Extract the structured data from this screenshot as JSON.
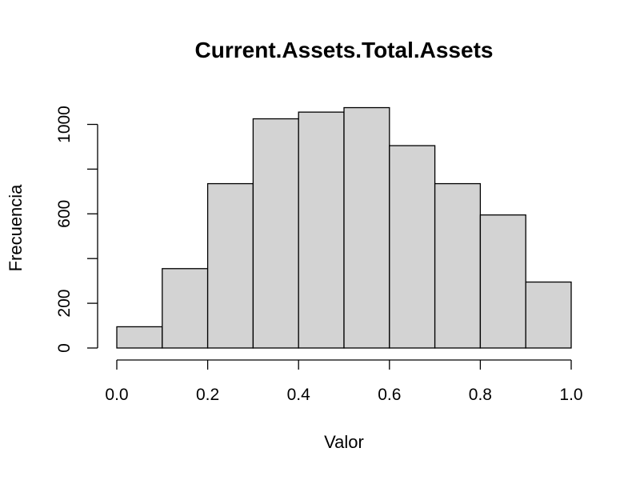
{
  "chart_data": {
    "type": "bar",
    "title": "Current.Assets.Total.Assets",
    "xlabel": "Valor",
    "ylabel": "Frecuencia",
    "bins": [
      {
        "start": 0.0,
        "end": 0.1,
        "value": 95
      },
      {
        "start": 0.1,
        "end": 0.2,
        "value": 355
      },
      {
        "start": 0.2,
        "end": 0.3,
        "value": 735
      },
      {
        "start": 0.3,
        "end": 0.4,
        "value": 1025
      },
      {
        "start": 0.4,
        "end": 0.5,
        "value": 1055
      },
      {
        "start": 0.5,
        "end": 0.6,
        "value": 1075
      },
      {
        "start": 0.6,
        "end": 0.7,
        "value": 905
      },
      {
        "start": 0.7,
        "end": 0.8,
        "value": 735
      },
      {
        "start": 0.8,
        "end": 0.9,
        "value": 595
      },
      {
        "start": 0.9,
        "end": 1.0,
        "value": 295
      }
    ],
    "xlim": [
      0,
      1
    ],
    "ylim": [
      0,
      1100
    ],
    "xticks": [
      0.0,
      0.2,
      0.4,
      0.6,
      0.8,
      1.0
    ],
    "xtick_labels": [
      "0.0",
      "0.2",
      "0.4",
      "0.6",
      "0.8",
      "1.0"
    ],
    "yticks": [
      0,
      200,
      400,
      600,
      800,
      1000
    ],
    "ytick_labels": [
      "0",
      "200",
      "",
      "600",
      "",
      "1000"
    ],
    "bar_color": "#d3d3d3",
    "grid": false
  }
}
